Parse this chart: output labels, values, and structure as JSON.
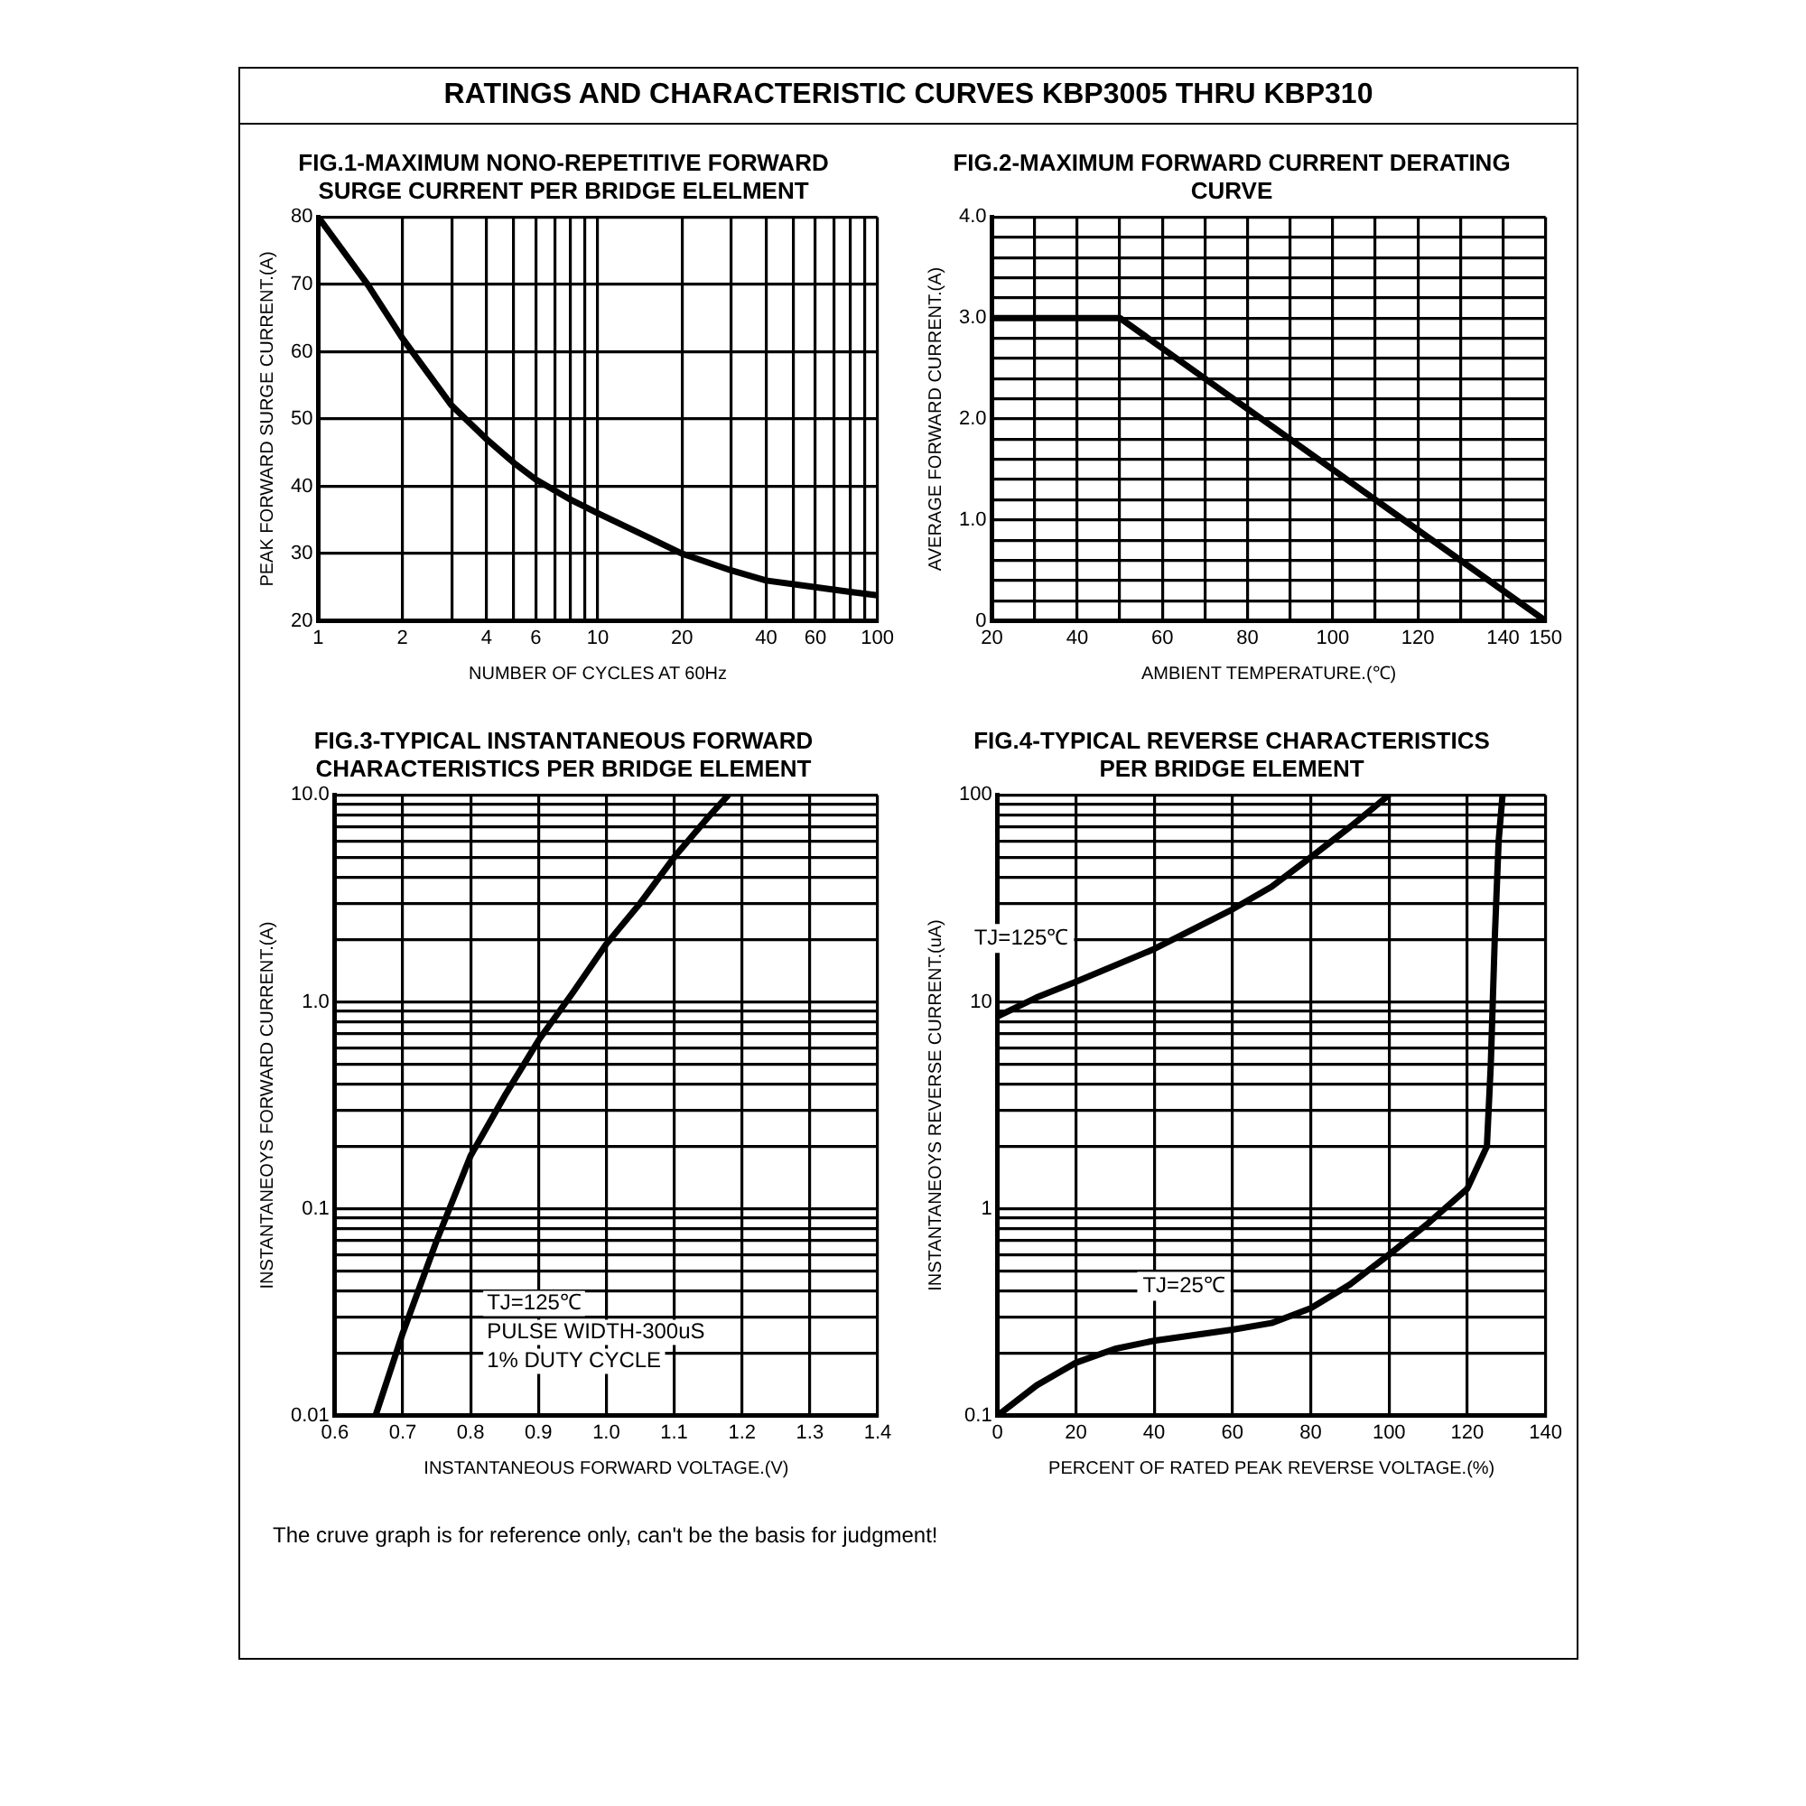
{
  "chart_data": [
    {
      "type": "other",
      "title": "RATINGS AND CHARACTERISTIC CURVES  KBP3005 THRU KBP310"
    },
    {
      "type": "line",
      "title": "FIG.1-MAXIMUM NONO-REPETITIVE FORWARD\nSURGE CURRENT PER BRIDGE ELELMENT",
      "xlabel": "NUMBER OF CYCLES AT 60Hz",
      "ylabel": "PEAK FORWARD SURGE CURRENT.(A)",
      "log": "x",
      "grid": true,
      "legend": false,
      "marker": "none",
      "line_style": "solid",
      "xlim": [
        1,
        100
      ],
      "xticks": [
        1,
        2,
        {
          "value": 3,
          "label": null
        },
        4,
        {
          "value": 5,
          "label": null
        },
        6,
        {
          "value": 7,
          "label": null
        },
        {
          "value": 8,
          "label": null
        },
        {
          "value": 9,
          "label": null
        },
        10,
        20,
        {
          "value": 30,
          "label": null
        },
        40,
        {
          "value": 50,
          "label": null
        },
        60,
        {
          "value": 70,
          "label": null
        },
        {
          "value": 80,
          "label": null
        },
        {
          "value": 90,
          "label": null
        },
        100
      ],
      "ylim": [
        20,
        80
      ],
      "yticks": [
        20,
        30,
        40,
        50,
        60,
        70,
        80
      ],
      "series": [
        {
          "color": "#000000",
          "x": [
            1,
            1.5,
            2,
            3,
            4,
            5,
            6,
            8,
            10,
            15,
            20,
            30,
            40,
            60,
            80,
            100
          ],
          "values": [
            80,
            70,
            62,
            52,
            47,
            43.5,
            41,
            38,
            36,
            32.5,
            30,
            27.5,
            26,
            25,
            24.3,
            23.8
          ]
        }
      ]
    },
    {
      "type": "line",
      "title": "FIG.2-MAXIMUM FORWARD CURRENT DERATING\nCURVE",
      "xlabel": "AMBIENT TEMPERATURE.(℃)",
      "ylabel": "AVERAGE FORWARD CURRENT.(A)",
      "grid": true,
      "legend": false,
      "marker": "none",
      "line_style": "solid",
      "xlim": [
        20,
        150
      ],
      "xticks": [
        20,
        {
          "value": 30,
          "label": null
        },
        40,
        {
          "value": 50,
          "label": null
        },
        60,
        {
          "value": 70,
          "label": null
        },
        80,
        {
          "value": 90,
          "label": null
        },
        100,
        {
          "value": 110,
          "label": null
        },
        120,
        {
          "value": 130,
          "label": null
        },
        140,
        150
      ],
      "ylim": [
        0,
        4
      ],
      "yticks": [
        0,
        {
          "value": 0.2,
          "label": null
        },
        {
          "value": 0.4,
          "label": null
        },
        {
          "value": 0.6,
          "label": null
        },
        {
          "value": 0.8,
          "label": null
        },
        {
          "value": 1,
          "label": "1.0"
        },
        {
          "value": 1.2,
          "label": null
        },
        {
          "value": 1.4,
          "label": null
        },
        {
          "value": 1.6,
          "label": null
        },
        {
          "value": 1.8,
          "label": null
        },
        {
          "value": 2,
          "label": "2.0"
        },
        {
          "value": 2.2,
          "label": null
        },
        {
          "value": 2.4,
          "label": null
        },
        {
          "value": 2.6,
          "label": null
        },
        {
          "value": 2.8,
          "label": null
        },
        {
          "value": 3,
          "label": "3.0"
        },
        {
          "value": 3.2,
          "label": null
        },
        {
          "value": 3.4,
          "label": null
        },
        {
          "value": 3.6,
          "label": null
        },
        {
          "value": 3.8,
          "label": null
        },
        {
          "value": 4,
          "label": "4.0"
        }
      ],
      "series": [
        {
          "color": "#000000",
          "x": [
            20,
            50,
            150
          ],
          "values": [
            3,
            3,
            0
          ]
        }
      ]
    },
    {
      "type": "line",
      "title": "FIG.3-TYPICAL INSTANTANEOUS FORWARD\nCHARACTERISTICS PER BRIDGE ELEMENT",
      "xlabel": "INSTANTANEOUS FORWARD VOLTAGE.(V)",
      "ylabel": "INSTANTANEOYS FORWARD CURRENT.(A)",
      "log": "y",
      "grid": true,
      "legend": false,
      "marker": "none",
      "line_style": "solid",
      "xlim": [
        0.6,
        1.4
      ],
      "xticks": [
        0.6,
        0.7,
        0.8,
        0.9,
        {
          "value": 1,
          "label": "1.0"
        },
        1.1,
        1.2,
        1.3,
        1.4
      ],
      "ylim": [
        0.01,
        10
      ],
      "yticks": [
        0.01,
        {
          "value": 0.02,
          "label": null
        },
        {
          "value": 0.03,
          "label": null
        },
        {
          "value": 0.04,
          "label": null
        },
        {
          "value": 0.05,
          "label": null
        },
        {
          "value": 0.06,
          "label": null
        },
        {
          "value": 0.07,
          "label": null
        },
        {
          "value": 0.08,
          "label": null
        },
        {
          "value": 0.09,
          "label": null
        },
        0.1,
        {
          "value": 0.2,
          "label": null
        },
        {
          "value": 0.3,
          "label": null
        },
        {
          "value": 0.4,
          "label": null
        },
        {
          "value": 0.5,
          "label": null
        },
        {
          "value": 0.6,
          "label": null
        },
        {
          "value": 0.7,
          "label": null
        },
        {
          "value": 0.8,
          "label": null
        },
        {
          "value": 0.9,
          "label": null
        },
        {
          "value": 1,
          "label": "1.0"
        },
        {
          "value": 2,
          "label": null
        },
        {
          "value": 3,
          "label": null
        },
        {
          "value": 4,
          "label": null
        },
        {
          "value": 5,
          "label": null
        },
        {
          "value": 6,
          "label": null
        },
        {
          "value": 7,
          "label": null
        },
        {
          "value": 8,
          "label": null
        },
        {
          "value": 9,
          "label": null
        },
        {
          "value": 10,
          "label": "10.0"
        }
      ],
      "annotations": [
        "TJ=125℃",
        "PULSE WIDTH-300uS",
        "1% DUTY CYCLE"
      ],
      "series": [
        {
          "color": "#000000",
          "x": [
            0.66,
            0.7,
            0.75,
            0.8,
            0.85,
            0.9,
            0.95,
            1.0,
            1.05,
            1.1,
            1.15,
            1.18
          ],
          "values": [
            0.01,
            0.025,
            0.07,
            0.18,
            0.35,
            0.65,
            1.1,
            1.9,
            3.0,
            5,
            7.8,
            10
          ]
        }
      ]
    },
    {
      "type": "line",
      "title": "FIG.4-TYPICAL REVERSE CHARACTERISTICS\nPER BRIDGE ELEMENT",
      "xlabel": "PERCENT OF RATED PEAK REVERSE VOLTAGE.(%)",
      "ylabel": "INSTANTANEOYS REVERSE CURRENT.(uA)",
      "log": "y",
      "grid": true,
      "legend": false,
      "marker": "none",
      "line_style": "solid",
      "xlim": [
        0,
        140
      ],
      "xticks": [
        0,
        20,
        40,
        60,
        80,
        100,
        120,
        140
      ],
      "ylim": [
        0.1,
        100
      ],
      "yticks": [
        0.1,
        {
          "value": 0.2,
          "label": null
        },
        {
          "value": 0.3,
          "label": null
        },
        {
          "value": 0.4,
          "label": null
        },
        {
          "value": 0.5,
          "label": null
        },
        {
          "value": 0.6,
          "label": null
        },
        {
          "value": 0.7,
          "label": null
        },
        {
          "value": 0.8,
          "label": null
        },
        {
          "value": 0.9,
          "label": null
        },
        1,
        {
          "value": 2,
          "label": null
        },
        {
          "value": 3,
          "label": null
        },
        {
          "value": 4,
          "label": null
        },
        {
          "value": 5,
          "label": null
        },
        {
          "value": 6,
          "label": null
        },
        {
          "value": 7,
          "label": null
        },
        {
          "value": 8,
          "label": null
        },
        {
          "value": 9,
          "label": null
        },
        10,
        {
          "value": 20,
          "label": null
        },
        {
          "value": 30,
          "label": null
        },
        {
          "value": 40,
          "label": null
        },
        {
          "value": 50,
          "label": null
        },
        {
          "value": 60,
          "label": null
        },
        {
          "value": 70,
          "label": null
        },
        {
          "value": 80,
          "label": null
        },
        {
          "value": 90,
          "label": null
        },
        100
      ],
      "series": [
        {
          "name": "TJ=125℃",
          "color": "#000000",
          "x": [
            0,
            10,
            20,
            40,
            60,
            70,
            80,
            90,
            100
          ],
          "values": [
            8.5,
            10.5,
            12.5,
            18,
            28,
            36,
            50,
            70,
            100
          ]
        },
        {
          "name": "TJ=25℃",
          "color": "#000000",
          "x": [
            0,
            10,
            20,
            30,
            40,
            60,
            70,
            80,
            90,
            100,
            110,
            120,
            125,
            126,
            127,
            128,
            129
          ],
          "values": [
            0.1,
            0.14,
            0.18,
            0.21,
            0.23,
            0.26,
            0.28,
            0.33,
            0.43,
            0.6,
            0.85,
            1.25,
            2,
            5,
            20,
            60,
            100
          ]
        }
      ]
    },
    {
      "type": "other",
      "annotations": [
        "The cruve graph is for reference only, can't be the basis for judgment!"
      ]
    }
  ]
}
